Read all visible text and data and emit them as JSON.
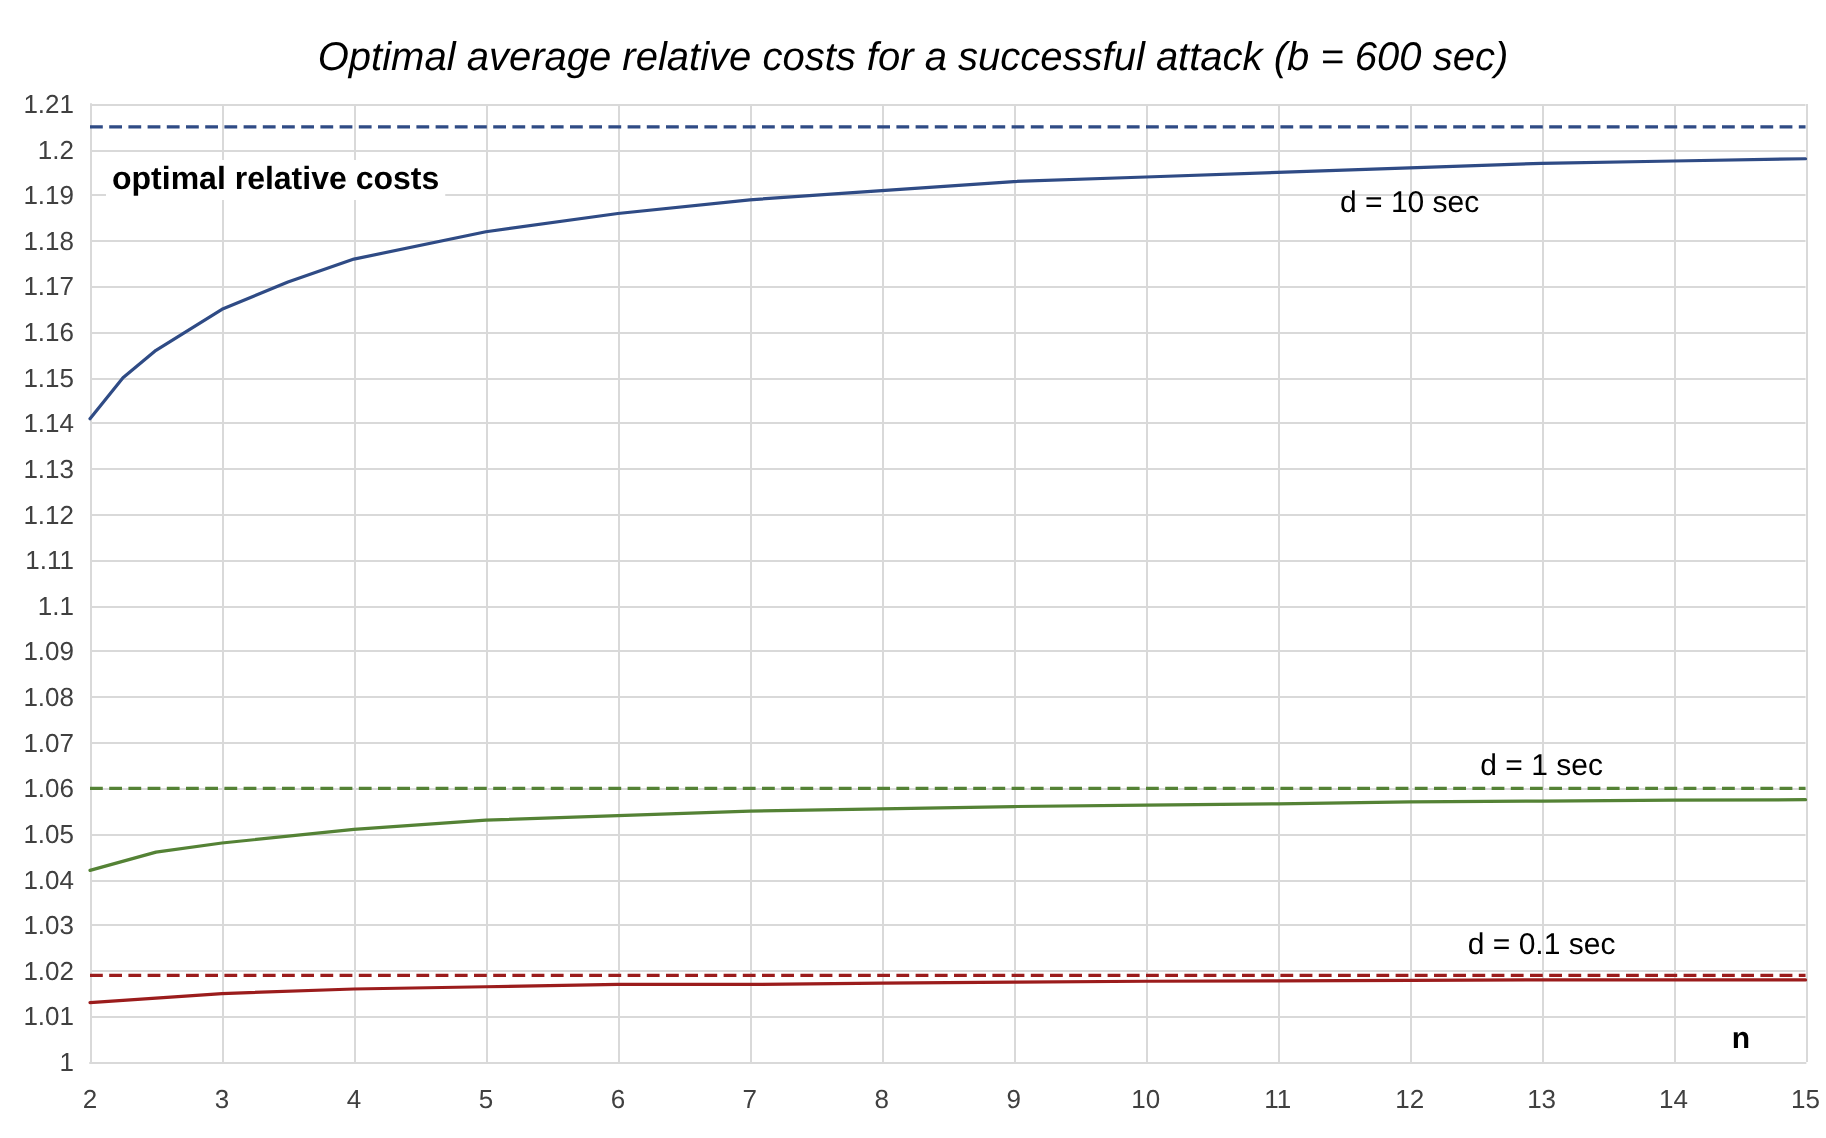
{
  "chart_data": {
    "type": "line",
    "title": "Optimal average relative costs for a successful attack (b = 600 sec)",
    "xlabel": "n",
    "ylabel": "optimal relative costs",
    "xlim": [
      2,
      15
    ],
    "xticks": [
      2,
      3,
      4,
      5,
      6,
      7,
      8,
      9,
      10,
      11,
      12,
      13,
      14,
      15
    ],
    "ylim": [
      1,
      1.21
    ],
    "yticks": [
      1,
      1.01,
      1.02,
      1.03,
      1.04,
      1.05,
      1.06,
      1.07,
      1.08,
      1.09,
      1.1,
      1.11,
      1.12,
      1.13,
      1.14,
      1.15,
      1.16,
      1.17,
      1.18,
      1.19,
      1.2,
      1.21
    ],
    "grid": true,
    "legend": false,
    "marker": "none",
    "line_style": "solid",
    "series": [
      {
        "name": "d = 10 sec",
        "color": "#2f4b85",
        "x": [
          2,
          2.25,
          2.5,
          3,
          3.5,
          4,
          5,
          6,
          7,
          8,
          9,
          10,
          11,
          12,
          13,
          14,
          15
        ],
        "values": [
          1.141,
          1.15,
          1.156,
          1.165,
          1.171,
          1.176,
          1.182,
          1.186,
          1.189,
          1.191,
          1.193,
          1.194,
          1.195,
          1.196,
          1.197,
          1.1975,
          1.198
        ]
      },
      {
        "name": "d = 1 sec",
        "color": "#548235",
        "x": [
          2,
          2.5,
          3,
          4,
          5,
          6,
          7,
          8,
          9,
          10,
          11,
          12,
          13,
          14,
          15
        ],
        "values": [
          1.042,
          1.046,
          1.048,
          1.051,
          1.053,
          1.054,
          1.055,
          1.0555,
          1.056,
          1.0563,
          1.0566,
          1.057,
          1.0572,
          1.0574,
          1.0575
        ]
      },
      {
        "name": "d = 0.1 sec",
        "color": "#9b1c1c",
        "x": [
          2,
          2.5,
          3,
          4,
          5,
          6,
          7,
          8,
          9,
          10,
          11,
          12,
          13,
          14,
          15
        ],
        "values": [
          1.013,
          1.014,
          1.015,
          1.016,
          1.0165,
          1.017,
          1.017,
          1.0173,
          1.0175,
          1.0177,
          1.0178,
          1.0179,
          1.018,
          1.018,
          1.018
        ]
      }
    ],
    "ref_lines": [
      {
        "axis": "y",
        "value": 1.205,
        "color": "#2f4b85",
        "line_style": "dashed"
      },
      {
        "axis": "y",
        "value": 1.06,
        "color": "#548235",
        "line_style": "dashed"
      },
      {
        "axis": "y",
        "value": 1.019,
        "color": "#9b1c1c",
        "line_style": "dashed"
      }
    ]
  }
}
